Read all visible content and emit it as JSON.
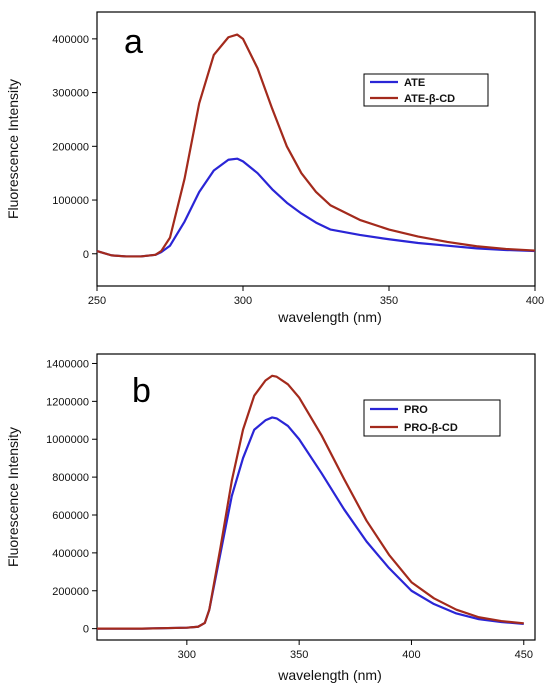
{
  "chart_data": [
    {
      "panel": "a",
      "type": "line",
      "xlabel": "wavelength (nm)",
      "ylabel": "Fluorescence Intensity",
      "xlim": [
        250,
        400
      ],
      "ylim": [
        -60000,
        450000
      ],
      "xticks": [
        250,
        300,
        350,
        400
      ],
      "yticks": [
        0,
        100000,
        200000,
        300000,
        400000
      ],
      "legend_position": "top-right",
      "series": [
        {
          "name": "ATE",
          "color": "#2a25d6",
          "x": [
            250,
            255,
            260,
            265,
            270,
            272,
            275,
            280,
            285,
            290,
            295,
            298,
            300,
            305,
            310,
            315,
            320,
            325,
            330,
            340,
            350,
            360,
            370,
            380,
            390,
            400
          ],
          "y": [
            5000,
            -3000,
            -5000,
            -5000,
            -2000,
            3000,
            15000,
            60000,
            115000,
            155000,
            175000,
            177000,
            172000,
            150000,
            120000,
            95000,
            75000,
            58000,
            45000,
            35000,
            27000,
            20000,
            15000,
            10000,
            7000,
            5000
          ]
        },
        {
          "name": "ATE-β-CD",
          "color": "#a32a1c",
          "x": [
            250,
            255,
            260,
            265,
            270,
            272,
            275,
            280,
            285,
            290,
            295,
            298,
            300,
            305,
            310,
            315,
            320,
            325,
            330,
            340,
            350,
            360,
            370,
            380,
            390,
            400
          ],
          "y": [
            5000,
            -3000,
            -5000,
            -5000,
            -2000,
            5000,
            30000,
            140000,
            280000,
            370000,
            403000,
            408000,
            400000,
            345000,
            270000,
            200000,
            150000,
            115000,
            90000,
            63000,
            45000,
            32000,
            22000,
            14000,
            9000,
            6000
          ]
        }
      ]
    },
    {
      "panel": "b",
      "type": "line",
      "xlabel": "wavelength (nm)",
      "ylabel": "Fluorescence Intensity",
      "xlim": [
        260,
        455
      ],
      "ylim": [
        -60000,
        1450000
      ],
      "xticks": [
        300,
        350,
        400,
        450
      ],
      "yticks": [
        0,
        200000,
        400000,
        600000,
        800000,
        1000000,
        1200000,
        1400000
      ],
      "legend_position": "top-right",
      "series": [
        {
          "name": "PRO",
          "color": "#2a25d6",
          "x": [
            260,
            280,
            300,
            305,
            308,
            310,
            315,
            320,
            325,
            330,
            335,
            338,
            340,
            345,
            350,
            360,
            370,
            380,
            390,
            400,
            410,
            420,
            430,
            440,
            450
          ],
          "y": [
            0,
            0,
            5000,
            10000,
            30000,
            100000,
            400000,
            700000,
            900000,
            1050000,
            1100000,
            1115000,
            1110000,
            1070000,
            1000000,
            820000,
            630000,
            460000,
            320000,
            200000,
            130000,
            80000,
            50000,
            35000,
            25000
          ]
        },
        {
          "name": "PRO-β-CD",
          "color": "#a32a1c",
          "x": [
            260,
            280,
            300,
            305,
            308,
            310,
            315,
            320,
            325,
            330,
            335,
            338,
            340,
            345,
            350,
            360,
            370,
            380,
            390,
            400,
            410,
            420,
            430,
            440,
            450
          ],
          "y": [
            0,
            0,
            5000,
            10000,
            30000,
            100000,
            430000,
            780000,
            1050000,
            1230000,
            1310000,
            1335000,
            1330000,
            1290000,
            1220000,
            1020000,
            790000,
            570000,
            390000,
            245000,
            160000,
            100000,
            60000,
            40000,
            28000
          ]
        }
      ]
    }
  ]
}
